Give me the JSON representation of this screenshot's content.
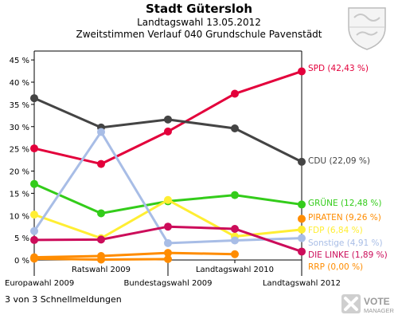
{
  "header": {
    "title": "Stadt Gütersloh",
    "subtitle": "Landtagswahl 13.05.2012",
    "subtitle2": "Zweitstimmen Verlauf 040 Grundschule Pavenstädt"
  },
  "footer": {
    "text": "3 von 3 Schnellmeldungen"
  },
  "logo": {
    "line1": "VOTE",
    "line2": "MANAGER"
  },
  "chart_data": {
    "type": "line",
    "x": [
      "Europawahl 2009",
      "Ratswahl 2009",
      "Bundestagswahl 2009",
      "Landtagswahl 2010",
      "Landtagswahl 2012"
    ],
    "ylim": [
      0,
      47
    ],
    "yticks": [
      "0 %",
      "5 %",
      "10 %",
      "15 %",
      "20 %",
      "25 %",
      "30 %",
      "35 %",
      "40 %",
      "45 %"
    ],
    "grid": false,
    "series": [
      {
        "name": "SPD",
        "label": "SPD (42,43 %)",
        "color": "#e3003b",
        "values": [
          25.1,
          21.6,
          28.9,
          37.4,
          42.43
        ]
      },
      {
        "name": "CDU",
        "label": "CDU (22,09 %)",
        "color": "#444444",
        "values": [
          36.4,
          29.8,
          31.6,
          29.6,
          22.09
        ]
      },
      {
        "name": "GRÜNE",
        "label": "GRÜNE (12,48 %)",
        "color": "#33cc1a",
        "values": [
          17.1,
          10.5,
          13.2,
          14.6,
          12.48
        ]
      },
      {
        "name": "PIRATEN",
        "label": "PIRATEN (9,26 %)",
        "color": "#ff8c00",
        "values": [
          null,
          null,
          null,
          null,
          9.26
        ]
      },
      {
        "name": "FDP",
        "label": "FDP (6,84 %)",
        "color": "#ffee33",
        "values": [
          10.2,
          4.9,
          13.5,
          5.3,
          6.84
        ]
      },
      {
        "name": "Sonstige",
        "label": "Sonstige (4,91 %)",
        "color": "#a8bde6",
        "values": [
          6.5,
          28.8,
          3.8,
          4.4,
          4.91
        ]
      },
      {
        "name": "DIE LINKE",
        "label": "DIE LINKE (1,89 %)",
        "color": "#cc0c5a",
        "values": [
          4.5,
          4.6,
          7.5,
          7.0,
          1.89
        ]
      },
      {
        "name": "RRP",
        "label": "RRP (0,00 %)",
        "color": "#ff8c00",
        "values": [
          0.6,
          0.9,
          1.6,
          1.3,
          null
        ]
      },
      {
        "name": "RRP-0",
        "label": "",
        "color": "#ff8c00",
        "values": [
          0.3,
          0.1,
          0.2,
          null,
          null
        ]
      }
    ]
  }
}
